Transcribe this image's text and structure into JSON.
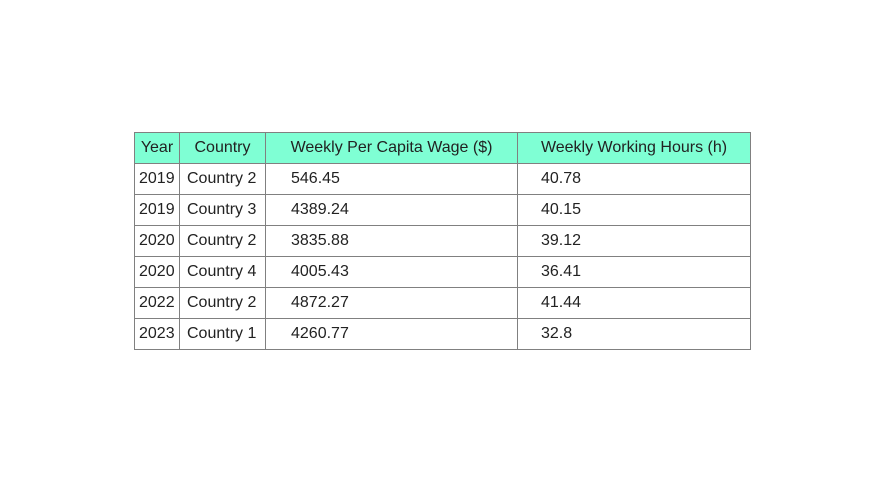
{
  "chart_data": {
    "type": "table",
    "columns": [
      "Year",
      "Country",
      "Weekly Per Capita Wage ($)",
      "Weekly Working Hours (h)"
    ],
    "rows": [
      [
        "2019",
        "Country 2",
        "546.45",
        "40.78"
      ],
      [
        "2019",
        "Country 3",
        "4389.24",
        "40.15"
      ],
      [
        "2020",
        "Country 2",
        "3835.88",
        "39.12"
      ],
      [
        "2020",
        "Country 4",
        "4005.43",
        "36.41"
      ],
      [
        "2022",
        "Country 2",
        "4872.27",
        "41.44"
      ],
      [
        "2023",
        "Country 1",
        "4260.77",
        "32.8"
      ]
    ],
    "header_color": "#7fffd4",
    "border_color": "#808080"
  }
}
